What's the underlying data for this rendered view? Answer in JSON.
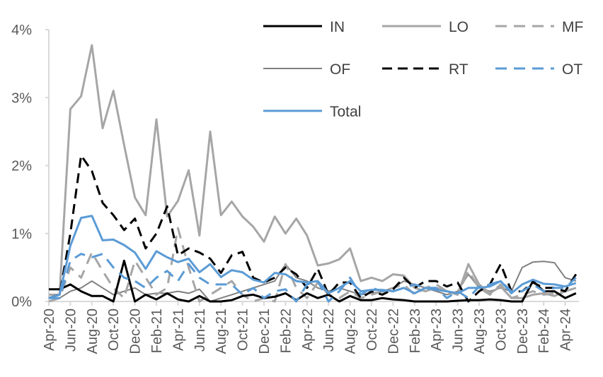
{
  "chart_data": {
    "type": "line",
    "title": "",
    "xlabel": "",
    "ylabel": "",
    "ylim": [
      0,
      4
    ],
    "yticks": [
      "0%",
      "1%",
      "2%",
      "3%",
      "4%"
    ],
    "ytick_values": [
      0,
      1,
      2,
      3,
      4
    ],
    "legend_position": "top-right",
    "grid": false,
    "x": [
      "Apr-20",
      "May-20",
      "Jun-20",
      "Jul-20",
      "Aug-20",
      "Sep-20",
      "Oct-20",
      "Nov-20",
      "Dec-20",
      "Jan-21",
      "Feb-21",
      "Mar-21",
      "Apr-21",
      "May-21",
      "Jun-21",
      "Jul-21",
      "Aug-21",
      "Sep-21",
      "Oct-21",
      "Nov-21",
      "Dec-21",
      "Jan-22",
      "Feb-22",
      "Mar-22",
      "Apr-22",
      "May-22",
      "Jun-22",
      "Jul-22",
      "Aug-22",
      "Sep-22",
      "Oct-22",
      "Nov-22",
      "Dec-22",
      "Jan-23",
      "Feb-23",
      "Mar-23",
      "Apr-23",
      "May-23",
      "Jun-23",
      "Jul-23",
      "Aug-23",
      "Sep-23",
      "Oct-23",
      "Nov-23",
      "Dec-23",
      "Jan-24",
      "Feb-24",
      "Mar-24",
      "Apr-24",
      "May-24"
    ],
    "xtick_labels": [
      "Apr-20",
      "Jun-20",
      "Aug-20",
      "Oct-20",
      "Dec-20",
      "Feb-21",
      "Apr-21",
      "Jun-21",
      "Aug-21",
      "Oct-21",
      "Dec-21",
      "Feb-22",
      "Apr-22",
      "Jun-22",
      "Aug-22",
      "Oct-22",
      "Dec-22",
      "Feb-23",
      "Apr-23",
      "Jun-23",
      "Aug-23",
      "Oct-23",
      "Dec-23",
      "Feb-24",
      "Apr-24"
    ],
    "series": [
      {
        "name": "IN",
        "color": "#000000",
        "dash": "",
        "width": 3,
        "values": [
          0.18,
          0.18,
          0.25,
          0.15,
          0.08,
          0.08,
          0.0,
          0.6,
          0.0,
          0.1,
          0.03,
          0.12,
          0.03,
          0.0,
          0.08,
          0.0,
          0.0,
          0.02,
          0.08,
          0.1,
          0.05,
          0.07,
          0.12,
          0.02,
          0.12,
          0.05,
          0.1,
          0.0,
          0.08,
          0.02,
          0.02,
          0.05,
          0.03,
          0.02,
          0.0,
          0.0,
          0.0,
          0.0,
          0.01,
          0.02,
          0.02,
          0.03,
          0.02,
          0.0,
          0.0,
          0.3,
          0.15,
          0.15,
          0.05,
          0.12
        ]
      },
      {
        "name": "LO",
        "color": "#a6a6a6",
        "dash": "",
        "width": 3,
        "values": [
          0.1,
          0.1,
          2.83,
          3.02,
          3.77,
          2.55,
          3.1,
          2.3,
          1.53,
          1.27,
          2.68,
          1.25,
          1.48,
          1.93,
          0.97,
          2.5,
          1.27,
          1.47,
          1.25,
          1.1,
          0.88,
          1.25,
          1.0,
          1.22,
          0.97,
          0.53,
          0.56,
          0.62,
          0.78,
          0.3,
          0.35,
          0.3,
          0.4,
          0.38,
          0.2,
          0.15,
          0.2,
          0.15,
          0.1,
          0.55,
          0.25,
          0.12,
          0.22,
          0.05,
          0.05,
          0.1,
          0.12,
          0.08,
          0.15,
          0.2
        ]
      },
      {
        "name": "MF",
        "color": "#a6a6a6",
        "dash": "16 10",
        "width": 3,
        "values": [
          0.0,
          0.05,
          0.5,
          0.35,
          0.72,
          0.45,
          0.2,
          0.05,
          0.6,
          0.35,
          0.1,
          0.2,
          1.08,
          0.5,
          0.0,
          0.1,
          0.2,
          0.3,
          0.1,
          0.0,
          0.05,
          0.0,
          0.55,
          0.2,
          0.05,
          0.28,
          0.1,
          0.05,
          0.15,
          0.05,
          0.1,
          0.15,
          0.2,
          0.25,
          0.1,
          0.2,
          0.25,
          0.15,
          0.1,
          0.45,
          0.2,
          0.1,
          0.25,
          0.05,
          0.1,
          0.15,
          0.1,
          0.12,
          0.15,
          0.2
        ]
      },
      {
        "name": "OF",
        "color": "#808080",
        "dash": "",
        "width": 2,
        "values": [
          0.05,
          0.05,
          0.15,
          0.2,
          0.3,
          0.2,
          0.1,
          0.15,
          0.2,
          0.1,
          0.12,
          0.12,
          0.15,
          0.12,
          0.18,
          0.0,
          0.05,
          0.1,
          0.15,
          0.2,
          0.25,
          0.3,
          0.55,
          0.35,
          0.3,
          0.2,
          0.15,
          0.2,
          0.15,
          0.1,
          0.12,
          0.15,
          0.2,
          0.3,
          0.25,
          0.2,
          0.15,
          0.1,
          0.15,
          0.4,
          0.2,
          0.15,
          0.2,
          0.15,
          0.5,
          0.58,
          0.59,
          0.57,
          0.35,
          0.3
        ]
      },
      {
        "name": "RT",
        "color": "#000000",
        "dash": "14 8",
        "width": 3,
        "values": [
          0.05,
          0.1,
          1.0,
          2.15,
          1.92,
          1.45,
          1.27,
          1.05,
          1.22,
          0.78,
          1.0,
          1.4,
          0.68,
          0.78,
          0.72,
          0.63,
          0.42,
          0.68,
          0.73,
          0.35,
          0.28,
          0.35,
          0.5,
          0.4,
          0.2,
          0.48,
          0.1,
          0.28,
          0.28,
          0.05,
          0.15,
          0.1,
          0.18,
          0.35,
          0.2,
          0.3,
          0.3,
          0.22,
          0.28,
          0.0,
          0.15,
          0.25,
          0.55,
          0.15,
          0.15,
          0.28,
          0.2,
          0.2,
          0.15,
          0.4
        ]
      },
      {
        "name": "OT",
        "color": "#5b9bd5",
        "dash": "16 10",
        "width": 3,
        "values": [
          0.05,
          0.05,
          0.6,
          0.7,
          0.65,
          0.7,
          0.5,
          0.35,
          0.3,
          0.2,
          0.35,
          0.45,
          0.3,
          0.55,
          0.35,
          0.25,
          0.25,
          0.25,
          0.1,
          0.2,
          0.05,
          0.15,
          0.18,
          0.0,
          0.25,
          0.3,
          0.0,
          0.15,
          0.35,
          0.1,
          0.2,
          0.15,
          0.15,
          0.2,
          0.25,
          0.2,
          0.2,
          0.05,
          0.15,
          0.05,
          0.22,
          0.25,
          0.3,
          0.15,
          0.15,
          0.25,
          0.15,
          0.2,
          0.2,
          0.35
        ]
      },
      {
        "name": "Total",
        "color": "#5b9bd5",
        "dash": "",
        "width": 3,
        "values": [
          0.05,
          0.1,
          0.82,
          1.23,
          1.26,
          0.9,
          0.91,
          0.83,
          0.72,
          0.48,
          0.74,
          0.65,
          0.58,
          0.63,
          0.43,
          0.55,
          0.36,
          0.46,
          0.43,
          0.32,
          0.28,
          0.42,
          0.4,
          0.3,
          0.28,
          0.3,
          0.12,
          0.2,
          0.3,
          0.15,
          0.17,
          0.17,
          0.15,
          0.2,
          0.12,
          0.2,
          0.17,
          0.15,
          0.12,
          0.2,
          0.2,
          0.22,
          0.3,
          0.12,
          0.25,
          0.32,
          0.26,
          0.25,
          0.22,
          0.27
        ]
      }
    ]
  }
}
